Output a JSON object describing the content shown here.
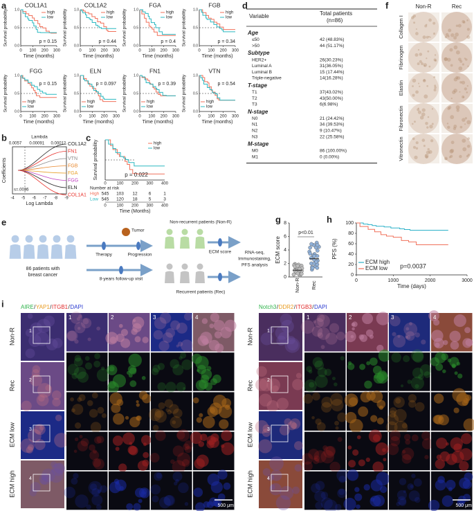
{
  "panels": {
    "a": {
      "label": "a",
      "ylabel": "Survival probability",
      "xlabel": "Time (months)",
      "xticks": [
        0,
        100,
        200,
        300
      ],
      "yticks": [
        "0.0",
        "0.5",
        "1.0"
      ],
      "legend": [
        "high",
        "low"
      ],
      "plots": [
        {
          "title": "COL1A1",
          "p": "p = 0.15"
        },
        {
          "title": "COL1A2",
          "p": "p = 0.44"
        },
        {
          "title": "FGA",
          "p": "p = 0.4"
        },
        {
          "title": "FGB",
          "p": "p = 0.34"
        },
        {
          "title": "FGG",
          "p": "p = 0.15"
        },
        {
          "title": "ELN",
          "p": "p = 0.097"
        },
        {
          "title": "FN1",
          "p": "p = 0.39"
        },
        {
          "title": "VTN",
          "p": "p = 0.54"
        }
      ]
    },
    "b": {
      "label": "b",
      "top_label": "Lambda",
      "top_ticks": [
        "0.0057",
        "0.00091",
        "0.00012"
      ],
      "ylabel": "Coefficients",
      "xlabel": "Log Lambda",
      "xticks": [
        -4,
        -5,
        -6,
        -7,
        -8,
        -9
      ],
      "annotation": "s=.0036",
      "genes": [
        {
          "name": "COL1A2",
          "color": "#222222"
        },
        {
          "name": "FN1",
          "color": "#e8302a"
        },
        {
          "name": "VTN",
          "color": "#888888"
        },
        {
          "name": "FGB",
          "color": "#e8862a"
        },
        {
          "name": "FGA",
          "color": "#e8a02a"
        },
        {
          "name": "FGG",
          "color": "#c040c0"
        },
        {
          "name": "ELN",
          "color": "#222222"
        },
        {
          "name": "COL1A1",
          "color": "#e8302a"
        }
      ]
    },
    "c": {
      "label": "c",
      "ylabel": "Survival probability",
      "xlabel": "Time (Months)",
      "xticks": [
        0,
        100,
        200,
        300,
        400
      ],
      "p": "p = 0.022",
      "legend": [
        "high",
        "low"
      ],
      "risk_title": "Number at risk",
      "risk": [
        {
          "name": "High",
          "values": [
            545,
            103,
            12,
            6,
            1
          ]
        },
        {
          "name": "Low",
          "values": [
            545,
            120,
            18,
            5,
            3
          ]
        }
      ]
    },
    "d": {
      "label": "d",
      "header": [
        "Variable",
        "Total patients",
        "(n=86)"
      ],
      "sections": [
        {
          "title": "Age",
          "rows": [
            [
              "≤50",
              "42 (48.83%)"
            ],
            [
              ">50",
              "44 (51.17%)"
            ]
          ]
        },
        {
          "title": "Subtype",
          "rows": [
            [
              "HER2+",
              "26(30.23%)"
            ],
            [
              "Luminal A",
              "31(36.05%)"
            ],
            [
              "Luminal B",
              "15 (17.44%)"
            ],
            [
              "Triple-negative",
              "14(16.28%)"
            ]
          ]
        },
        {
          "title": "T-stage",
          "rows": [
            [
              "T1",
              "37(43.02%)"
            ],
            [
              "T2",
              "43(50.00%)"
            ],
            [
              "T3",
              "6(6.98%)"
            ]
          ]
        },
        {
          "title": "N-stage",
          "rows": [
            [
              "N0",
              "21 (24.42%)"
            ],
            [
              "N1",
              "34 (39.53%)"
            ],
            [
              "N2",
              "9 (10.47%)"
            ],
            [
              "N3",
              "22 (25.58%)"
            ]
          ]
        },
        {
          "title": "M-stage",
          "rows": [
            [
              "M0",
              "86 (100.00%)"
            ],
            [
              "M1",
              "0 (0.00%)"
            ]
          ]
        }
      ]
    },
    "e": {
      "label": "e",
      "patients": [
        "86 patients with",
        "breast cancer"
      ],
      "therapy": "Therapy",
      "progression": "Progression",
      "tumor": "Tumor",
      "followup": "8-years follow-up visit",
      "nonr": "Non-recurrent patients (Non-R)",
      "rec": "Recurrent patients (Rec)",
      "ecm": "ECM score",
      "analysis": [
        "RNA-seq,",
        "Immunostaining,",
        "PFS analysis"
      ]
    },
    "f": {
      "label": "f",
      "columns": [
        "Non-R",
        "Rec"
      ],
      "rows": [
        "Collagen I",
        "Fibrinogen",
        "Elastin",
        "Fibronectin",
        "Vitronectin"
      ]
    },
    "g": {
      "label": "g",
      "ylabel": "ECM score",
      "yticks": [
        0,
        2,
        4,
        6,
        8
      ],
      "categories": [
        "Non-R",
        "Rec"
      ],
      "annotation": "p<0.01"
    },
    "h": {
      "label": "h",
      "ylabel": "PFS (%)",
      "xlabel": "Time (days)",
      "xticks": [
        0,
        1000,
        2000,
        3000
      ],
      "yticks": [
        0,
        20,
        40,
        60,
        80,
        100
      ],
      "p": "p=0.0037",
      "legend": [
        {
          "name": "ECM high",
          "color": "#2ab0c8"
        },
        {
          "name": "ECM low",
          "color": "#f0705a"
        }
      ]
    },
    "i": {
      "label": "i",
      "rows": [
        "Non-R",
        "Rec",
        "ECM low",
        "ECM high"
      ],
      "columns": [
        "1",
        "2",
        "3",
        "4"
      ],
      "scale": "500 μm",
      "left_title": [
        {
          "text": "AIRE",
          "color": "#2db34a"
        },
        {
          "text": "/",
          "color": "#222222"
        },
        {
          "text": "YAP1",
          "color": "#e89a1e"
        },
        {
          "text": "/",
          "color": "#222222"
        },
        {
          "text": "ITGB1",
          "color": "#e02a2a"
        },
        {
          "text": "/",
          "color": "#222222"
        },
        {
          "text": "DAPI",
          "color": "#2a3ad0"
        }
      ],
      "right_title": [
        {
          "text": "Notch3",
          "color": "#2db34a"
        },
        {
          "text": "/",
          "color": "#222222"
        },
        {
          "text": "DDR2",
          "color": "#e89a1e"
        },
        {
          "text": "/",
          "color": "#222222"
        },
        {
          "text": "ITGB3",
          "color": "#e02a2a"
        },
        {
          "text": "/",
          "color": "#222222"
        },
        {
          "text": "DAPI",
          "color": "#2a3ad0"
        }
      ]
    }
  }
}
